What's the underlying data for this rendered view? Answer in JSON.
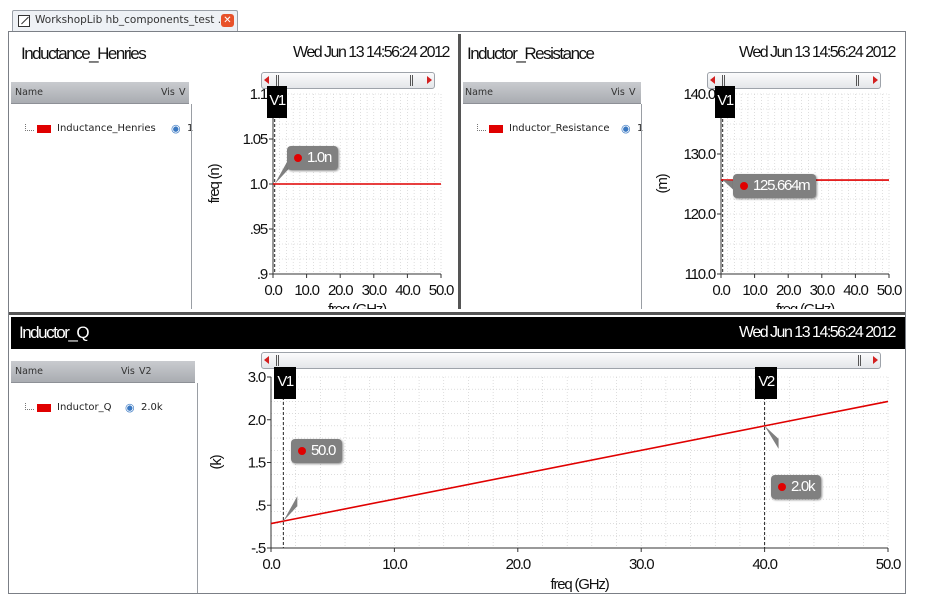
{
  "tab": {
    "title": "WorkshopLib hb_components_test ...",
    "close_icon": "close-icon"
  },
  "panes": {
    "inductance": {
      "title": "Inductance_Henries",
      "date": "Wed Jun 13 14:56:24 2012",
      "legend_headers": {
        "name": "Name",
        "vis": "Vis",
        "v": "V"
      },
      "legend_row": {
        "name": "Inductance_Henries",
        "value": "1"
      },
      "marker": "V1",
      "callout": "1.0n"
    },
    "resistance": {
      "title": "Inductor_Resistance",
      "date": "Wed Jun 13 14:56:24 2012",
      "legend_headers": {
        "name": "Name",
        "vis": "Vis",
        "v": "V"
      },
      "legend_row": {
        "name": "Inductor_Resistance",
        "value": "1"
      },
      "marker": "V1",
      "callout": "125.664m"
    },
    "q": {
      "title": "Inductor_Q",
      "date": "Wed Jun 13 14:56:24 2012",
      "legend_headers": {
        "name": "Name",
        "vis": "Vis",
        "v": "V2"
      },
      "legend_row": {
        "name": "Inductor_Q",
        "value": "2.0k"
      },
      "marker1": "V1",
      "marker2": "V2",
      "callout1": "50.0",
      "callout2": "2.0k"
    }
  },
  "colors": {
    "trace": "#e00000",
    "accent_icon": "#3a78c2",
    "callout_bg": "#808080"
  },
  "chart_data": [
    {
      "type": "line",
      "title": "Inductance_Henries",
      "xlabel": "freq (GHz)",
      "ylabel": "freq (n)",
      "x_ticks": [
        "0.0",
        "10.0",
        "20.0",
        "30.0",
        "40.0",
        "50.0"
      ],
      "y_ticks": [
        "1.1",
        "1.05",
        "1.0",
        ".95",
        ".9"
      ],
      "xlim": [
        0,
        50
      ],
      "ylim": [
        0.9,
        1.1
      ],
      "series": [
        {
          "name": "Inductance_Henries",
          "x": [
            0,
            50
          ],
          "y": [
            1.0,
            1.0
          ]
        }
      ],
      "markers": [
        {
          "label": "V1",
          "x": 0.5,
          "value": "1.0n"
        }
      ],
      "grid": true
    },
    {
      "type": "line",
      "title": "Inductor_Resistance",
      "xlabel": "freq (GHz)",
      "ylabel": "(m)",
      "x_ticks": [
        "0.0",
        "10.0",
        "20.0",
        "30.0",
        "40.0",
        "50.0"
      ],
      "y_ticks": [
        "140.0",
        "130.0",
        "120.0",
        "110.0"
      ],
      "xlim": [
        0,
        50
      ],
      "ylim": [
        110,
        140
      ],
      "series": [
        {
          "name": "Inductor_Resistance",
          "x": [
            0,
            50
          ],
          "y": [
            125.664,
            125.664
          ]
        }
      ],
      "markers": [
        {
          "label": "V1",
          "x": 0.5,
          "value": "125.664m"
        }
      ],
      "grid": true
    },
    {
      "type": "line",
      "title": "Inductor_Q",
      "xlabel": "freq (GHz)",
      "ylabel": "(k)",
      "x_ticks": [
        "0.0",
        "10.0",
        "20.0",
        "30.0",
        "40.0",
        "50.0"
      ],
      "y_ticks": [
        "3.0",
        "2.0",
        "1.5",
        ".5",
        "-.5"
      ],
      "xlim": [
        0,
        50
      ],
      "ylim": [
        -0.5,
        3.0
      ],
      "series": [
        {
          "name": "Inductor_Q",
          "x": [
            0,
            1,
            40,
            50
          ],
          "y": [
            0.0,
            0.05,
            2.0,
            2.5
          ]
        }
      ],
      "markers": [
        {
          "label": "V1",
          "x": 1,
          "value": "50.0"
        },
        {
          "label": "V2",
          "x": 40,
          "value": "2.0k"
        }
      ],
      "grid": true
    }
  ]
}
